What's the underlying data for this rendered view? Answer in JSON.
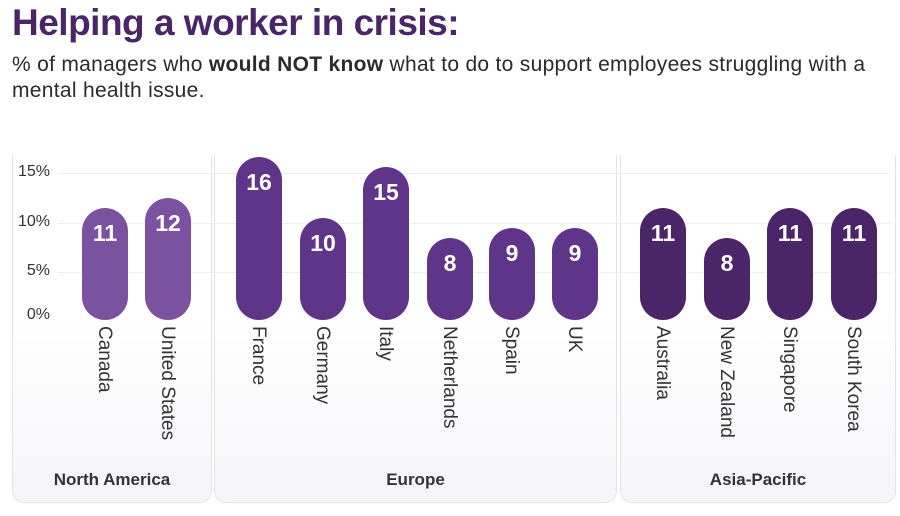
{
  "title": "Helping a worker in crisis:",
  "subtitle": {
    "pre": "% of managers who ",
    "bold": "would NOT know",
    "post": " what to do to support employees struggling with a mental health issue."
  },
  "chart_data": {
    "type": "bar",
    "title": "Helping a worker in crisis:",
    "ylabel": "",
    "yticks": [
      "0%",
      "5%",
      "10%",
      "15%"
    ],
    "ylim": [
      0,
      16
    ],
    "grid": true,
    "groups": [
      {
        "name": "North America",
        "color": "#7b52a0",
        "categories": [
          "Canada",
          "United States"
        ],
        "values": [
          11,
          12
        ]
      },
      {
        "name": "Europe",
        "color": "#5f3589",
        "categories": [
          "France",
          "Germany",
          "Italy",
          "Netherlands",
          "Spain",
          "UK"
        ],
        "values": [
          16,
          10,
          15,
          8,
          9,
          9
        ]
      },
      {
        "name": "Asia-Pacific",
        "color": "#4a2668",
        "categories": [
          "Australia",
          "New Zealand",
          "Singapore",
          "South Korea"
        ],
        "values": [
          11,
          8,
          11,
          11
        ]
      }
    ]
  }
}
